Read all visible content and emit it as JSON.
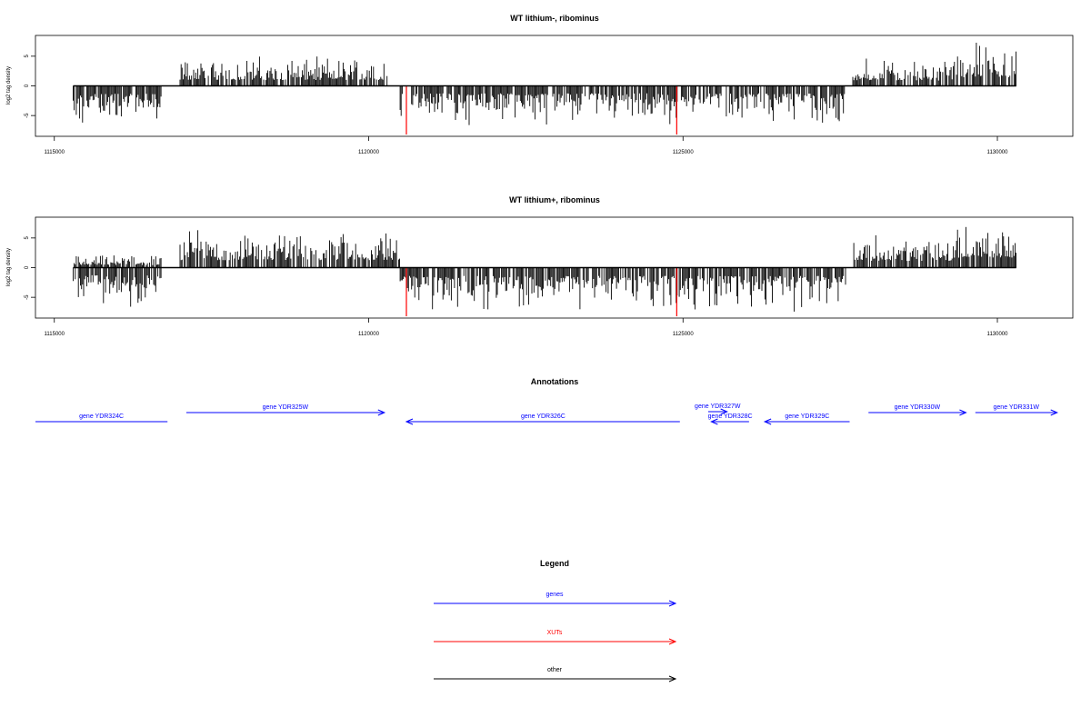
{
  "chart_data": [
    {
      "type": "bar",
      "title": "WT lithium-, ribominus",
      "ylabel": "log2 tag density",
      "xlim": [
        1114700,
        1131200
      ],
      "ylim": [
        -8.5,
        8.5
      ],
      "xticks": [
        1115000,
        1120000,
        1125000,
        1130000
      ],
      "yticks": [
        -5,
        0,
        5
      ],
      "baseline": {
        "x_start": 1115300,
        "x_end": 1130300
      },
      "segments": [
        {
          "x_start": 1115300,
          "x_end": 1116700,
          "sign": -1,
          "amplitude": 3.8
        },
        {
          "x_start": 1117000,
          "x_end": 1120300,
          "sign": 1,
          "amplitude": 2.8
        },
        {
          "x_start": 1120500,
          "x_end": 1127600,
          "sign": -1,
          "amplitude": 3.6
        },
        {
          "x_start": 1127700,
          "x_end": 1129300,
          "sign": 1,
          "amplitude": 2.6
        },
        {
          "x_start": 1129300,
          "x_end": 1130300,
          "sign": 1,
          "amplitude": 4.2
        }
      ],
      "highlights": [
        {
          "x": 1120600,
          "y": -8.2,
          "color": "#ff0000"
        },
        {
          "x": 1124900,
          "y": -8.2,
          "color": "#ff0000"
        }
      ]
    },
    {
      "type": "bar",
      "title": "WT lithium+, ribominus",
      "ylabel": "log2 tag density",
      "xlim": [
        1114700,
        1131200
      ],
      "ylim": [
        -8.5,
        8.5
      ],
      "xticks": [
        1115000,
        1120000,
        1125000,
        1130000
      ],
      "yticks": [
        -5,
        0,
        5
      ],
      "baseline": {
        "x_start": 1115300,
        "x_end": 1130300
      },
      "segments": [
        {
          "x_start": 1115300,
          "x_end": 1116700,
          "sign": -1,
          "amplitude": 3.6
        },
        {
          "x_start": 1115300,
          "x_end": 1116700,
          "sign": 1,
          "amplitude": 1.2
        },
        {
          "x_start": 1117000,
          "x_end": 1120500,
          "sign": 1,
          "amplitude": 3.6
        },
        {
          "x_start": 1120500,
          "x_end": 1127600,
          "sign": -1,
          "amplitude": 4.0
        },
        {
          "x_start": 1127700,
          "x_end": 1129300,
          "sign": 1,
          "amplitude": 3.2
        },
        {
          "x_start": 1129300,
          "x_end": 1130300,
          "sign": 1,
          "amplitude": 4.8
        }
      ],
      "highlights": [
        {
          "x": 1120600,
          "y": -8.2,
          "color": "#ff0000"
        },
        {
          "x": 1124900,
          "y": -8.2,
          "color": "#ff0000"
        }
      ]
    }
  ],
  "annotations": {
    "title": "Annotations",
    "color": "#0000ff",
    "genes": [
      {
        "name": "gene YDR324C",
        "x_start": 1114700,
        "x_end": 1116800,
        "strand": "none",
        "row": 2
      },
      {
        "name": "gene YDR325W",
        "x_start": 1117100,
        "x_end": 1120250,
        "strand": "+",
        "row": 1
      },
      {
        "name": "gene YDR326C",
        "x_start": 1120600,
        "x_end": 1124950,
        "strand": "-",
        "row": 2
      },
      {
        "name": "gene YDR327W",
        "x_start": 1125400,
        "x_end": 1125700,
        "strand": "+",
        "row": 0
      },
      {
        "name": "gene YDR328C",
        "x_start": 1125450,
        "x_end": 1126050,
        "strand": "-",
        "row": 2
      },
      {
        "name": "gene YDR329C",
        "x_start": 1126300,
        "x_end": 1127650,
        "strand": "-",
        "row": 2
      },
      {
        "name": "gene YDR330W",
        "x_start": 1127950,
        "x_end": 1129500,
        "strand": "+",
        "row": 1
      },
      {
        "name": "gene YDR331W",
        "x_start": 1129650,
        "x_end": 1130950,
        "strand": "+",
        "row": 1
      }
    ]
  },
  "legend": {
    "title": "Legend",
    "items": [
      {
        "label": "genes",
        "color": "#0000ff"
      },
      {
        "label": "XUTs",
        "color": "#ff0000"
      },
      {
        "label": "other",
        "color": "#000000"
      }
    ]
  }
}
